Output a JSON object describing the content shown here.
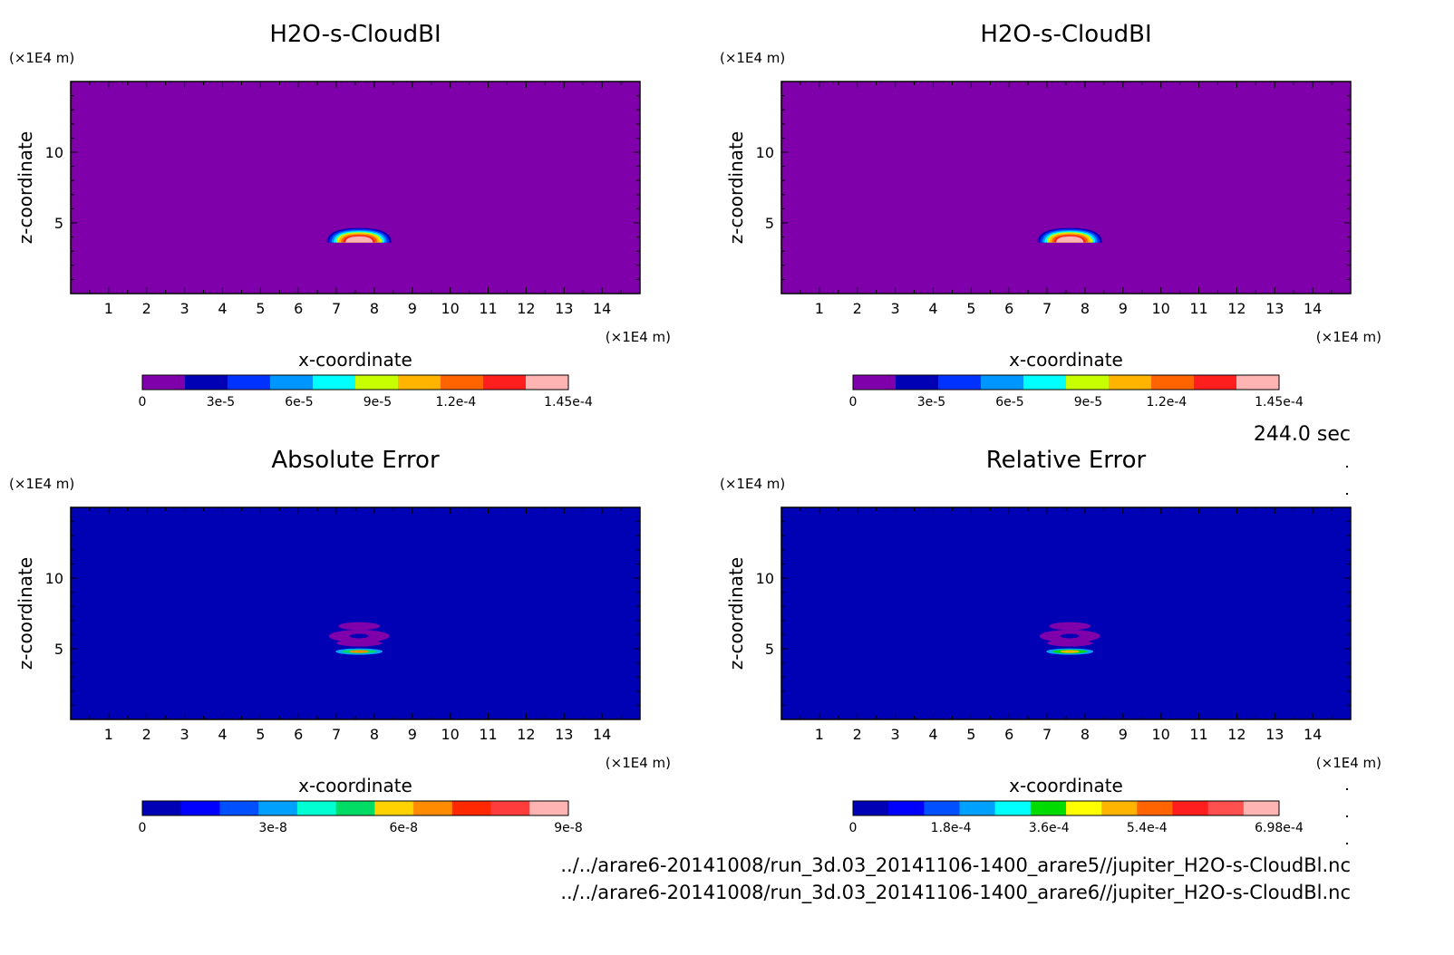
{
  "chart_data": [
    {
      "type": "heatmap",
      "title": "H2O-s-CloudBI",
      "xlabel": "x-coordinate",
      "ylabel": "z-coordinate",
      "x_unit": "(×1E4 m)",
      "y_unit": "(×1E4 m)",
      "xlim": [
        0,
        15
      ],
      "ylim": [
        0,
        15
      ],
      "x_ticks": [
        "1",
        "2",
        "3",
        "4",
        "5",
        "6",
        "7",
        "8",
        "9",
        "10",
        "11",
        "12",
        "13",
        "14"
      ],
      "y_ticks": [
        "5",
        "10"
      ],
      "background_color": "#7f00aa",
      "colorbar": {
        "colors": [
          "#7f00aa",
          "#0000b4",
          "#0032ff",
          "#0096ff",
          "#00ffff",
          "#c8ff00",
          "#ffb400",
          "#ff6400",
          "#ff1e1e",
          "#ffb4b4"
        ],
        "tick_labels": [
          "0",
          "3e-5",
          "6e-5",
          "9e-5",
          "1.2e-4",
          "1.45e-4"
        ]
      },
      "feature": {
        "shape": "cloud-cap",
        "center_x": 7.6,
        "center_z": 4.0,
        "half_width": 0.85,
        "height": 0.85
      }
    },
    {
      "type": "heatmap",
      "title": "H2O-s-CloudBI",
      "xlabel": "x-coordinate",
      "ylabel": "z-coordinate",
      "x_unit": "(×1E4 m)",
      "y_unit": "(×1E4 m)",
      "xlim": [
        0,
        15
      ],
      "ylim": [
        0,
        15
      ],
      "x_ticks": [
        "1",
        "2",
        "3",
        "4",
        "5",
        "6",
        "7",
        "8",
        "9",
        "10",
        "11",
        "12",
        "13",
        "14"
      ],
      "y_ticks": [
        "5",
        "10"
      ],
      "background_color": "#7f00aa",
      "colorbar": {
        "colors": [
          "#7f00aa",
          "#0000b4",
          "#0032ff",
          "#0096ff",
          "#00ffff",
          "#c8ff00",
          "#ffb400",
          "#ff6400",
          "#ff1e1e",
          "#ffb4b4"
        ],
        "tick_labels": [
          "0",
          "3e-5",
          "6e-5",
          "9e-5",
          "1.2e-4",
          "1.45e-4"
        ]
      },
      "feature": {
        "shape": "cloud-cap",
        "center_x": 7.6,
        "center_z": 4.0,
        "half_width": 0.85,
        "height": 0.85
      }
    },
    {
      "type": "heatmap",
      "title": "Absolute Error",
      "xlabel": "x-coordinate",
      "ylabel": "z-coordinate",
      "x_unit": "(×1E4 m)",
      "y_unit": "(×1E4 m)",
      "xlim": [
        0,
        15
      ],
      "ylim": [
        0,
        15
      ],
      "x_ticks": [
        "1",
        "2",
        "3",
        "4",
        "5",
        "6",
        "7",
        "8",
        "9",
        "10",
        "11",
        "12",
        "13",
        "14"
      ],
      "y_ticks": [
        "5",
        "10"
      ],
      "background_color": "#0000b4",
      "colorbar": {
        "colors": [
          "#0000b4",
          "#0000ff",
          "#0050ff",
          "#00a0ff",
          "#00ffd2",
          "#00dc64",
          "#ffd200",
          "#ff8c00",
          "#ff2800",
          "#ff3c3c",
          "#ffb4b4"
        ],
        "tick_labels": [
          "0",
          "3e-8",
          "6e-8",
          "9e-8"
        ]
      },
      "feature": {
        "shape": "error-blob",
        "center_x": 7.6,
        "center_z": 5.5,
        "half_width": 1.0,
        "height": 2.0
      }
    },
    {
      "type": "heatmap",
      "title": "Relative Error",
      "xlabel": "x-coordinate",
      "ylabel": "z-coordinate",
      "x_unit": "(×1E4 m)",
      "y_unit": "(×1E4 m)",
      "xlim": [
        0,
        15
      ],
      "ylim": [
        0,
        15
      ],
      "x_ticks": [
        "1",
        "2",
        "3",
        "4",
        "5",
        "6",
        "7",
        "8",
        "9",
        "10",
        "11",
        "12",
        "13",
        "14"
      ],
      "y_ticks": [
        "5",
        "10"
      ],
      "background_color": "#0000b4",
      "colorbar": {
        "colors": [
          "#0000b4",
          "#0000ff",
          "#0050ff",
          "#00a0ff",
          "#00ffff",
          "#00dc00",
          "#ffff00",
          "#ffb400",
          "#ff6400",
          "#ff1e1e",
          "#ff5050",
          "#ffb4b4"
        ],
        "tick_labels": [
          "0",
          "1.8e-4",
          "3.6e-4",
          "5.4e-4",
          "6.98e-4"
        ]
      },
      "feature": {
        "shape": "error-blob",
        "center_x": 7.6,
        "center_z": 5.5,
        "half_width": 1.0,
        "height": 2.0
      }
    }
  ],
  "timestamp": "244.0 sec",
  "files": [
    "../../arare6-20141008/run_3d.03_20141106-1400_arare5//jupiter_H2O-s-CloudBl.nc",
    "../../arare6-20141008/run_3d.03_20141106-1400_arare6//jupiter_H2O-s-CloudBl.nc"
  ]
}
